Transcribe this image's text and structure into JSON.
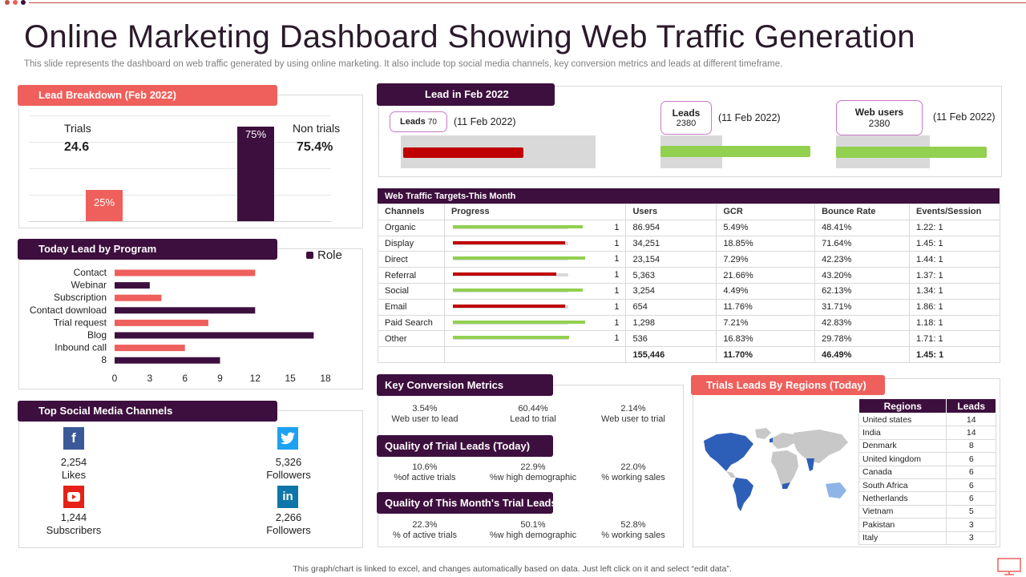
{
  "header": {
    "title": "Online Marketing Dashboard Showing Web Traffic Generation",
    "subtitle": "This slide represents the dashboard on web traffic generated by using online marketing. It also include top social media channels, key conversion metrics and leads at different timeframe.",
    "footer": "This graph/chart is linked to excel, and changes automatically based on data. Just left click on it and select “edit data”."
  },
  "lead_breakdown": {
    "title": "Lead Breakdown (Feb 2022)",
    "trials_label": "Trials",
    "trials_value": "24.6",
    "non_trials_label": "Non trials",
    "non_trials_value": "75.4%",
    "bar_trials_label": "25%",
    "bar_non_trials_label": "75%"
  },
  "today_lead": {
    "title": "Today Lead by Program",
    "legend": "Role"
  },
  "social": {
    "title": "Top Social Media Channels",
    "items": [
      {
        "icon": "f",
        "value": "2,254",
        "label": "Likes",
        "color": "#3b5998"
      },
      {
        "icon": "🐦",
        "value": "5,326",
        "label": "Followers",
        "color": "#1da1f2"
      },
      {
        "icon": "▶",
        "value": "1,244",
        "label": "Subscribers",
        "color": "#e62117"
      },
      {
        "icon": "in",
        "value": "2,266",
        "label": "Followers",
        "color": "#0e76a8"
      }
    ]
  },
  "lead_feb": {
    "title": "Lead in Feb 2022",
    "leads_pill_label": "Leads",
    "leads_pill_value": "70",
    "leads_date": "(11 Feb 2022)",
    "leads2_label": "Leads",
    "leads2_value": "2380",
    "leads2_date": "(11 Feb 2022)",
    "web_users_label": "Web users",
    "web_users_value": "2380",
    "web_users_date": "(11 Feb 2022)",
    "bar1_fill": 0.78,
    "bar2_fill": 1.0,
    "bar3_fill": 1.0
  },
  "web_traffic": {
    "title": "Web Traffic Targets-This Month",
    "columns": [
      "Channels",
      "Progress",
      "Users",
      "GCR",
      "Bounce Rate",
      "Events/Session"
    ],
    "rows": [
      {
        "channel": "Organic",
        "target": "1",
        "users": "86.954",
        "gcr": "5.49%",
        "bounce": "48.41%",
        "events": "1.22: 1",
        "progress": 0.98,
        "color": "#92d050"
      },
      {
        "channel": "Display",
        "target": "1",
        "users": "34,251",
        "gcr": "18.85%",
        "bounce": "71.64%",
        "events": "1.45: 1",
        "progress": 0.85,
        "color": "#c00000"
      },
      {
        "channel": "Direct",
        "target": "1",
        "users": "23,154",
        "gcr": "7.29%",
        "bounce": "42.23%",
        "events": "1.44: 1",
        "progress": 1.0,
        "color": "#92d050"
      },
      {
        "channel": "Referral",
        "target": "1",
        "users": "5,363",
        "gcr": "21.66%",
        "bounce": "43.20%",
        "events": "1.37: 1",
        "progress": 0.78,
        "color": "#c00000"
      },
      {
        "channel": "Social",
        "target": "1",
        "users": "3,254",
        "gcr": "4.49%",
        "bounce": "62.13%",
        "events": "1.34: 1",
        "progress": 0.98,
        "color": "#92d050"
      },
      {
        "channel": "Email",
        "target": "1",
        "users": "654",
        "gcr": "11.76%",
        "bounce": "31.71%",
        "events": "1.86: 1",
        "progress": 0.85,
        "color": "#c00000"
      },
      {
        "channel": "Paid Search",
        "target": "1",
        "users": "1,298",
        "gcr": "7.21%",
        "bounce": "42.83%",
        "events": "1.18: 1",
        "progress": 1.0,
        "color": "#92d050"
      },
      {
        "channel": "Other",
        "target": "1",
        "users": "536",
        "gcr": "16.83%",
        "bounce": "29.78%",
        "events": "1.71: 1",
        "progress": 0.88,
        "color": "#92d050"
      }
    ],
    "totals": {
      "users": "155,446",
      "gcr": "11.70%",
      "bounce": "46.49%",
      "events": "1.45: 1"
    }
  },
  "key_conversion": {
    "title": "Key Conversion Metrics",
    "metrics": [
      {
        "value": "3.54%",
        "label": "Web user to lead"
      },
      {
        "value": "60.44%",
        "label": "Lead to trial"
      },
      {
        "value": "2.14%",
        "label": "Web user to trial"
      }
    ]
  },
  "quality_today": {
    "title": "Quality of Trial Leads (Today)",
    "metrics": [
      {
        "value": "10.6%",
        "label": "%of active trials"
      },
      {
        "value": "22.9%",
        "label": "%w high demographic"
      },
      {
        "value": "22.0%",
        "label": "% working sales"
      }
    ]
  },
  "quality_month": {
    "title": "Quality of This Month's Trial Leads",
    "metrics": [
      {
        "value": "22.3%",
        "label": "% of active trials"
      },
      {
        "value": "50.1%",
        "label": "%w high demographic"
      },
      {
        "value": "52.8%",
        "label": "% working sales"
      }
    ]
  },
  "regions": {
    "title": "Trials Leads By Regions (Today)",
    "col_regions": "Regions",
    "col_leads": "Leads",
    "rows": [
      {
        "region": "United states",
        "leads": "14"
      },
      {
        "region": "India",
        "leads": "14"
      },
      {
        "region": "Denmark",
        "leads": "8"
      },
      {
        "region": "United kingdom",
        "leads": "6"
      },
      {
        "region": "Canada",
        "leads": "6"
      },
      {
        "region": "South Africa",
        "leads": "6"
      },
      {
        "region": "Netherlands",
        "leads": "6"
      },
      {
        "region": "Vietnam",
        "leads": "5"
      },
      {
        "region": "Pakistan",
        "leads": "3"
      },
      {
        "region": "Italy",
        "leads": "3"
      }
    ]
  },
  "colors": {
    "dark": "#3d0f3e",
    "coral": "#ef5f5b",
    "green": "#92d050",
    "red": "#c00000"
  },
  "chart_data": [
    {
      "type": "bar",
      "title": "Lead Breakdown (Feb 2022)",
      "categories": [
        "Trials",
        "Non trials"
      ],
      "values": [
        25,
        75
      ],
      "ylim": [
        0,
        80
      ]
    },
    {
      "type": "bar",
      "orientation": "horizontal",
      "title": "Today Lead by Program",
      "legend": "Role",
      "categories": [
        "Contact",
        "Webinar",
        "Subscription",
        "Contact download",
        "Trial request",
        "Blog",
        "Inbound call",
        "8"
      ],
      "values": [
        12,
        3,
        4,
        12,
        8,
        17,
        6,
        9
      ],
      "colors": [
        "#ef5f5b",
        "#3d0f3e",
        "#ef5f5b",
        "#3d0f3e",
        "#ef5f5b",
        "#3d0f3e",
        "#ef5f5b",
        "#3d0f3e"
      ],
      "xticks": [
        "0",
        "3",
        "6",
        "9",
        "12",
        "15",
        "18"
      ],
      "xlim": [
        0,
        18
      ]
    }
  ]
}
